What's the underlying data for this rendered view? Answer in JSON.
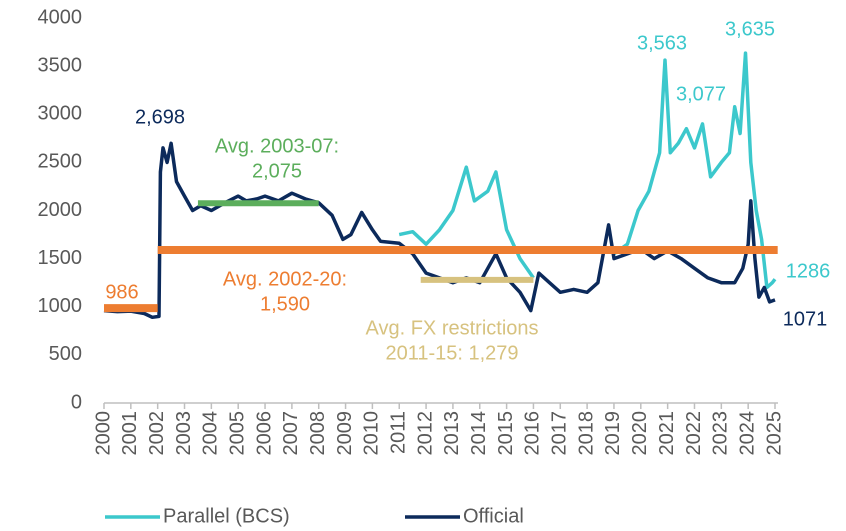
{
  "chart_data": {
    "type": "line",
    "xlim": [
      2000,
      2025
    ],
    "xticks": [
      2000,
      2001,
      2002,
      2003,
      2004,
      2005,
      2006,
      2007,
      2008,
      2009,
      2010,
      2011,
      2012,
      2013,
      2014,
      2015,
      2016,
      2017,
      2018,
      2019,
      2020,
      2021,
      2022,
      2023,
      2024,
      2025
    ],
    "ylim": [
      0,
      4000
    ],
    "yticks": [
      0,
      500,
      1000,
      1500,
      2000,
      2500,
      3000,
      3500,
      4000
    ],
    "legend": "bottom",
    "series": [
      {
        "name": "Parallel (BCS)",
        "color": "#3cc8cc",
        "x": [
          2011,
          2011.5,
          2012,
          2012.5,
          2013,
          2013.5,
          2013.8,
          2014.3,
          2014.6,
          2015,
          2015.5,
          2016,
          2016.3,
          2019,
          2019.5,
          2019.9,
          2020.3,
          2020.7,
          2020.9,
          2021.1,
          2021.4,
          2021.7,
          2022,
          2022.3,
          2022.6,
          2023,
          2023.3,
          2023.5,
          2023.7,
          2023.9,
          2024.1,
          2024.3,
          2024.5,
          2024.7,
          2024.9,
          2025
        ],
        "values": [
          1750,
          1780,
          1650,
          1800,
          2000,
          2450,
          2100,
          2200,
          2400,
          1800,
          1500,
          1300,
          null,
          1550,
          1650,
          2000,
          2200,
          2600,
          3563,
          2600,
          2700,
          2850,
          2650,
          2900,
          2350,
          2500,
          2600,
          3077,
          2800,
          3635,
          2500,
          2000,
          1700,
          1200,
          1250,
          1286
        ]
      },
      {
        "name": "Official",
        "color": "#0c2a5b",
        "x": [
          2000,
          2000.5,
          2001,
          2001.5,
          2001.8,
          2002.05,
          2002.1,
          2002.2,
          2002.35,
          2002.5,
          2002.7,
          2003,
          2003.3,
          2003.6,
          2004,
          2004.5,
          2005,
          2005.3,
          2005.7,
          2006,
          2006.5,
          2007,
          2007.5,
          2008,
          2008.5,
          2008.9,
          2009.2,
          2009.6,
          2010,
          2010.3,
          2011,
          2011.5,
          2012,
          2012.5,
          2013,
          2013.5,
          2014,
          2014.6,
          2015,
          2015.5,
          2015.9,
          2016.2,
          2016.6,
          2017,
          2017.5,
          2018,
          2018.4,
          2018.8,
          2019,
          2019.5,
          2020,
          2020.5,
          2021,
          2021.5,
          2022,
          2022.5,
          2023,
          2023.5,
          2023.8,
          2024,
          2024.1,
          2024.25,
          2024.4,
          2024.6,
          2024.8,
          2025
        ],
        "values": [
          960,
          950,
          955,
          930,
          890,
          900,
          2400,
          2650,
          2500,
          2698,
          2300,
          2150,
          2000,
          2050,
          2000,
          2080,
          2150,
          2100,
          2120,
          2150,
          2100,
          2180,
          2120,
          2080,
          1950,
          1700,
          1750,
          1980,
          1800,
          1680,
          1660,
          1550,
          1350,
          1300,
          1250,
          1300,
          1250,
          1550,
          1300,
          1150,
          960,
          1350,
          1250,
          1150,
          1180,
          1150,
          1250,
          1850,
          1500,
          1550,
          1600,
          1500,
          1580,
          1500,
          1400,
          1300,
          1250,
          1250,
          1400,
          1650,
          2100,
          1500,
          1100,
          1200,
          1050,
          1071
        ]
      }
    ],
    "averages": [
      {
        "value": 986,
        "start": 2000,
        "end": 2002,
        "color": "#ed7d31",
        "lines": [
          "986"
        ]
      },
      {
        "value": 1590,
        "start": 2002,
        "end": 2025.1,
        "color": "#ed7d31",
        "lines": [
          "Avg. 2002-20:",
          "1,590"
        ]
      },
      {
        "value": 2075,
        "start": 2003.5,
        "end": 2008,
        "color": "#5cae5c",
        "lines": [
          "Avg. 2003-07:",
          "2,075"
        ]
      },
      {
        "value": 1279,
        "start": 2011.8,
        "end": 2016,
        "color": "#d7c27f",
        "lines": [
          "Avg. FX restrictions",
          "2011-15: 1,279"
        ]
      }
    ],
    "point_labels": [
      {
        "x": 2002.5,
        "value": 2698,
        "label": "2,698",
        "series": 1
      },
      {
        "x": 2020.9,
        "value": 3563,
        "label": "3,563",
        "series": 0
      },
      {
        "x": 2023.5,
        "value": 3077,
        "label": "3,077",
        "series": 0
      },
      {
        "x": 2023.9,
        "value": 3635,
        "label": "3,635",
        "series": 0
      },
      {
        "x": 2025,
        "value": 1286,
        "label": "1286",
        "series": 0
      },
      {
        "x": 2025,
        "value": 1071,
        "label": "1071",
        "series": 1
      }
    ]
  }
}
